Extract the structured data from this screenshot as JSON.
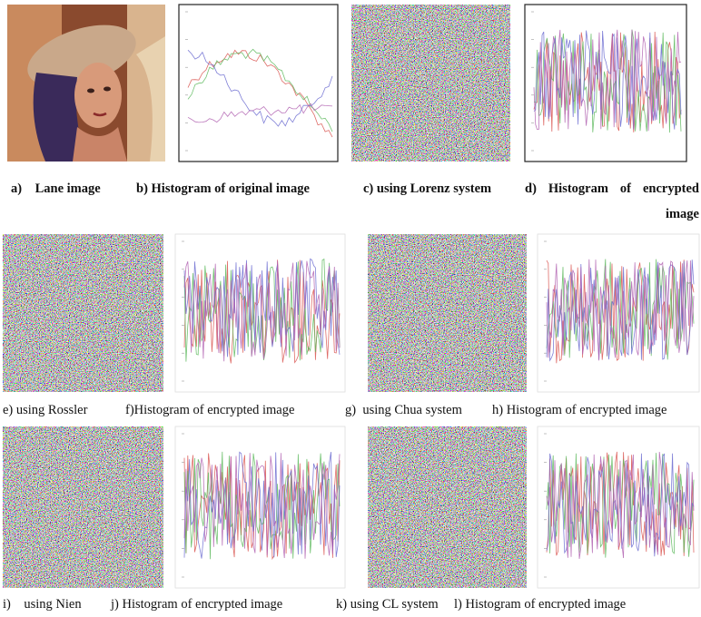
{
  "captions": {
    "a": "a)    Lane image",
    "b": "b) Histogram of original image",
    "c": "c) using Lorenz system",
    "d": "d) Histogram of encrypted image",
    "e": "e) using Rossler",
    "f": "f)Histogram of encrypted image",
    "g": "g)  using Chua system",
    "h": "h) Histogram of encrypted image",
    "i": "i)    using Nien",
    "j": "j) Histogram of encrypted image",
    "k": "k) using CL system",
    "l": "l) Histogram of encrypted image"
  }
}
